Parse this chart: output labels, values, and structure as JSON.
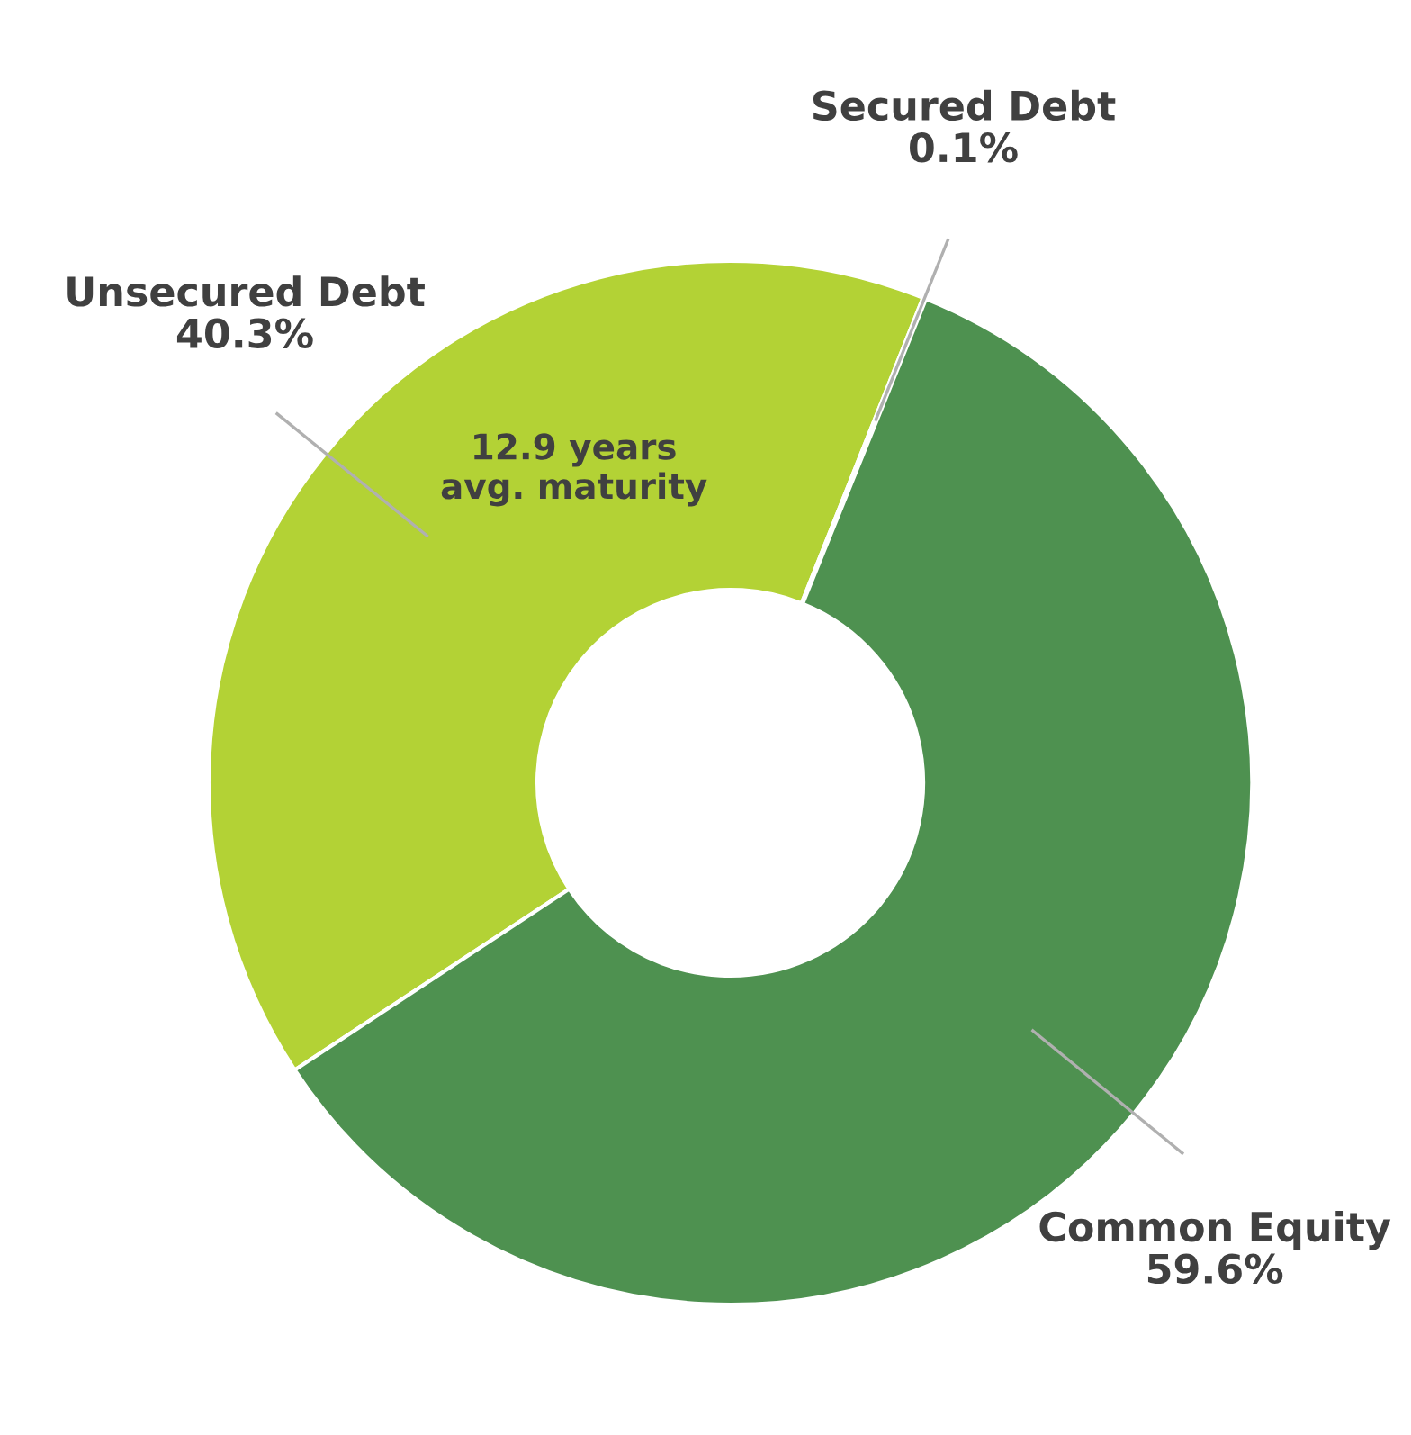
{
  "chart_data": {
    "type": "donut",
    "categories": [
      "Unsecured Debt",
      "Secured Debt",
      "Common Equity"
    ],
    "values": [
      40.3,
      0.1,
      59.6
    ],
    "colors": [
      "#b3d235",
      "#c9dd3a",
      "#4e9150"
    ],
    "value_labels": [
      "40.3%",
      "0.1%",
      "59.6%"
    ],
    "annotations": [
      "12.9 years\navg. maturity"
    ],
    "legend": false
  }
}
